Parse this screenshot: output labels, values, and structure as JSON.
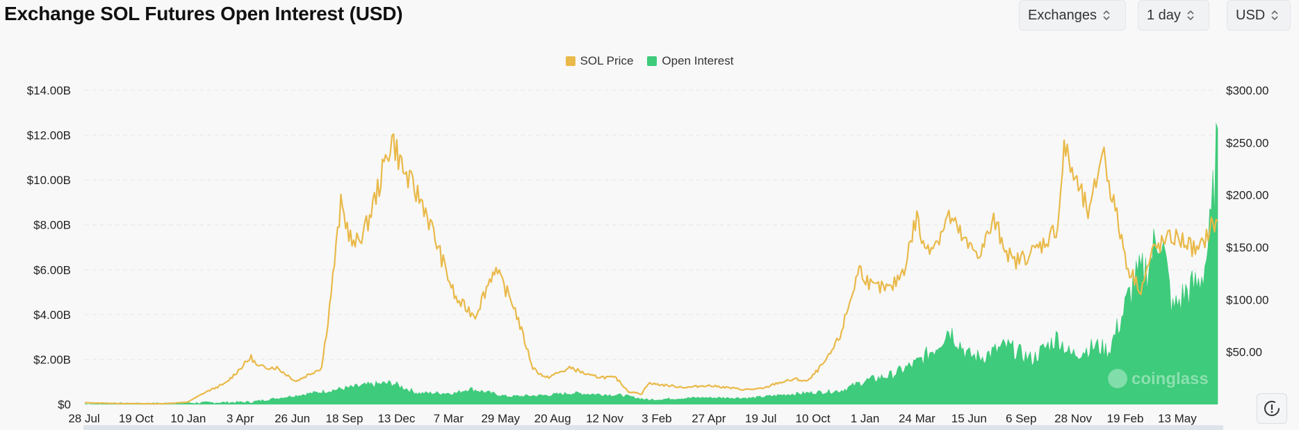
{
  "header": {
    "title": "Exchange SOL Futures Open Interest (USD)",
    "controls": [
      {
        "label": "Exchanges"
      },
      {
        "label": "1 day"
      },
      {
        "label": "USD"
      }
    ]
  },
  "watermark": "coinglass",
  "colors": {
    "price": "#e9b949",
    "oi": "#3ecb7b",
    "grid": "#e6e6e6"
  },
  "chart_data": {
    "type": "area",
    "title": "Exchange SOL Futures Open Interest (USD)",
    "legend": {
      "placement": "top-center"
    },
    "grid": true,
    "x_tick_labels": [
      "28 Jul",
      "19 Oct",
      "10 Jan",
      "3 Apr",
      "26 Jun",
      "18 Sep",
      "13 Dec",
      "7 Mar",
      "29 May",
      "20 Aug",
      "12 Nov",
      "3 Feb",
      "27 Apr",
      "19 Jul",
      "10 Oct",
      "1 Jan",
      "24 Mar",
      "15 Jun",
      "6 Sep",
      "28 Nov",
      "19 Feb",
      "13 May"
    ],
    "y_left": {
      "ticks": [
        "$0",
        "$2.00B",
        "$4.00B",
        "$6.00B",
        "$8.00B",
        "$10.00B",
        "$12.00B",
        "$14.00B"
      ],
      "range": [
        0,
        14
      ]
    },
    "y_right": {
      "ticks": [
        "$50.00",
        "$100.00",
        "$150.00",
        "$200.00",
        "$250.00",
        "$300.00"
      ],
      "range": [
        0,
        300
      ]
    },
    "series": [
      {
        "name": "SOL Price",
        "axis": "right",
        "points": [
          [
            0,
            1.5
          ],
          [
            6,
            0.7
          ],
          [
            12,
            0.5
          ],
          [
            16,
            2
          ],
          [
            19,
            12
          ],
          [
            22,
            20
          ],
          [
            26,
            45
          ],
          [
            27,
            36
          ],
          [
            30,
            35
          ],
          [
            33,
            22
          ],
          [
            37,
            35
          ],
          [
            38,
            80
          ],
          [
            40,
            190
          ],
          [
            42,
            150
          ],
          [
            44,
            170
          ],
          [
            46,
            210
          ],
          [
            48,
            255
          ],
          [
            50,
            220
          ],
          [
            53,
            190
          ],
          [
            56,
            135
          ],
          [
            58,
            100
          ],
          [
            61,
            85
          ],
          [
            64,
            130
          ],
          [
            67,
            95
          ],
          [
            70,
            35
          ],
          [
            72,
            25
          ],
          [
            76,
            35
          ],
          [
            79,
            27
          ],
          [
            83,
            25
          ],
          [
            85,
            12
          ],
          [
            87,
            10
          ],
          [
            88,
            20
          ],
          [
            91,
            18
          ],
          [
            94,
            16
          ],
          [
            97,
            18
          ],
          [
            99,
            17
          ],
          [
            103,
            14
          ],
          [
            106,
            15
          ],
          [
            108,
            20
          ],
          [
            111,
            24
          ],
          [
            113,
            22
          ],
          [
            116,
            43
          ],
          [
            118,
            65
          ],
          [
            121,
            130
          ],
          [
            123,
            112
          ],
          [
            126,
            110
          ],
          [
            128,
            130
          ],
          [
            130,
            180
          ],
          [
            131,
            150
          ],
          [
            133,
            155
          ],
          [
            135,
            180
          ],
          [
            138,
            150
          ],
          [
            140,
            145
          ],
          [
            142,
            175
          ],
          [
            145,
            135
          ],
          [
            148,
            145
          ],
          [
            150,
            155
          ],
          [
            152,
            170
          ],
          [
            153,
            245
          ],
          [
            155,
            210
          ],
          [
            157,
            180
          ],
          [
            159,
            245
          ],
          [
            161,
            185
          ],
          [
            163,
            130
          ],
          [
            165,
            110
          ],
          [
            167,
            148
          ],
          [
            170,
            160
          ],
          [
            172,
            155
          ],
          [
            174,
            145
          ],
          [
            176,
            170
          ],
          [
            177,
            175
          ]
        ]
      },
      {
        "name": "Open Interest",
        "axis": "left",
        "points": [
          [
            0,
            0.01
          ],
          [
            12,
            0.04
          ],
          [
            26,
            0.1
          ],
          [
            38,
            0.6
          ],
          [
            44,
            0.85
          ],
          [
            48,
            0.95
          ],
          [
            52,
            0.5
          ],
          [
            58,
            0.5
          ],
          [
            60,
            0.7
          ],
          [
            66,
            0.35
          ],
          [
            72,
            0.4
          ],
          [
            76,
            0.5
          ],
          [
            84,
            0.4
          ],
          [
            88,
            0.2
          ],
          [
            96,
            0.3
          ],
          [
            104,
            0.28
          ],
          [
            110,
            0.45
          ],
          [
            118,
            0.6
          ],
          [
            122,
            1.05
          ],
          [
            126,
            1.3
          ],
          [
            130,
            1.85
          ],
          [
            133,
            2.55
          ],
          [
            135,
            3.4
          ],
          [
            138,
            2.2
          ],
          [
            140,
            2.1
          ],
          [
            144,
            2.6
          ],
          [
            148,
            2.0
          ],
          [
            152,
            3.0
          ],
          [
            154,
            2.2
          ],
          [
            158,
            2.6
          ],
          [
            160,
            2.4
          ],
          [
            162,
            3.9
          ],
          [
            164,
            5.5
          ],
          [
            166,
            6.1
          ],
          [
            168,
            7.8
          ],
          [
            170,
            4.2
          ],
          [
            172,
            5.0
          ],
          [
            174,
            5.4
          ],
          [
            175,
            6.2
          ],
          [
            176,
            8.0
          ],
          [
            177,
            12.3
          ]
        ]
      }
    ]
  }
}
